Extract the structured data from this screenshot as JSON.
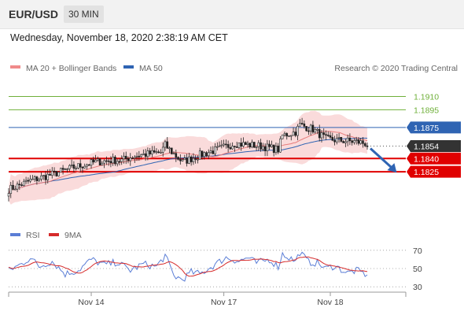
{
  "header": {
    "symbol": "EUR/USD",
    "timeframe": "30 MIN"
  },
  "date_line": "Wednesday, November 18, 2020 2:38:19 AM CET",
  "credit": "Research © 2020 Trading Central",
  "colors": {
    "resistance": "#6fb03a",
    "support": "#e00000",
    "ma50": "#2f64b3",
    "ma20": "#e77c7c",
    "band": "#f8c8c8",
    "price_tag": "#333333",
    "rsi": "#5b7ed6",
    "rsi_ma": "#d62b2b",
    "arrow": "#2f64b3"
  },
  "chart_data": [
    {
      "type": "candlestick",
      "legend": [
        "MA 20 + Bollinger Bands",
        "MA 50"
      ],
      "ylim": [
        1.177,
        1.193
      ],
      "x_ticks": [
        {
          "label": "Nov 14",
          "index": 38
        },
        {
          "label": "Nov 17",
          "index": 99
        },
        {
          "label": "Nov 18",
          "index": 148
        }
      ],
      "levels": [
        {
          "value": 1.191,
          "label": "1.1910",
          "kind": "resistance"
        },
        {
          "value": 1.1895,
          "label": "1.1895",
          "kind": "resistance"
        },
        {
          "value": 1.1875,
          "label": "1.1875",
          "kind": "pivot"
        },
        {
          "value": 1.1854,
          "label": "1.1854",
          "kind": "last"
        },
        {
          "value": 1.184,
          "label": "1.1840",
          "kind": "support"
        },
        {
          "value": 1.1825,
          "label": "1.1825",
          "kind": "support"
        }
      ],
      "price_path": [
        [
          0,
          1.1805
        ],
        [
          10,
          1.1815
        ],
        [
          20,
          1.1822
        ],
        [
          30,
          1.183
        ],
        [
          40,
          1.1836
        ],
        [
          48,
          1.1838
        ],
        [
          52,
          1.1838
        ],
        [
          58,
          1.1843
        ],
        [
          70,
          1.1847
        ],
        [
          72,
          1.1855
        ],
        [
          76,
          1.1845
        ],
        [
          80,
          1.1836
        ],
        [
          88,
          1.1844
        ],
        [
          96,
          1.185
        ],
        [
          104,
          1.1857
        ],
        [
          116,
          1.1854
        ],
        [
          124,
          1.185
        ],
        [
          126,
          1.1866
        ],
        [
          132,
          1.187
        ],
        [
          134,
          1.1878
        ],
        [
          140,
          1.1873
        ],
        [
          146,
          1.1862
        ],
        [
          154,
          1.186
        ],
        [
          160,
          1.1859
        ],
        [
          164,
          1.1857
        ],
        [
          165,
          1.1855
        ]
      ],
      "forecast": {
        "from_index": 165,
        "from": 1.1854,
        "to_index": 176,
        "to": 1.1825
      }
    },
    {
      "type": "line",
      "legend": [
        "RSI",
        "9MA"
      ],
      "ylim": [
        25,
        75
      ],
      "y_ticks": [
        70,
        50,
        30
      ],
      "rsi_path": [
        [
          0,
          48
        ],
        [
          6,
          55
        ],
        [
          10,
          62
        ],
        [
          14,
          52
        ],
        [
          20,
          58
        ],
        [
          26,
          44
        ],
        [
          32,
          48
        ],
        [
          38,
          60
        ],
        [
          44,
          54
        ],
        [
          50,
          57
        ],
        [
          56,
          48
        ],
        [
          62,
          55
        ],
        [
          68,
          52
        ],
        [
          72,
          64
        ],
        [
          76,
          42
        ],
        [
          80,
          38
        ],
        [
          84,
          46
        ],
        [
          88,
          44
        ],
        [
          92,
          50
        ],
        [
          96,
          56
        ],
        [
          100,
          62
        ],
        [
          106,
          58
        ],
        [
          110,
          62
        ],
        [
          114,
          56
        ],
        [
          120,
          60
        ],
        [
          124,
          52
        ],
        [
          126,
          66
        ],
        [
          132,
          58
        ],
        [
          134,
          68
        ],
        [
          138,
          57
        ],
        [
          142,
          56
        ],
        [
          146,
          50
        ],
        [
          150,
          53
        ],
        [
          156,
          45
        ],
        [
          160,
          48
        ],
        [
          164,
          44
        ],
        [
          165,
          40
        ]
      ],
      "ma_period": 9
    }
  ]
}
